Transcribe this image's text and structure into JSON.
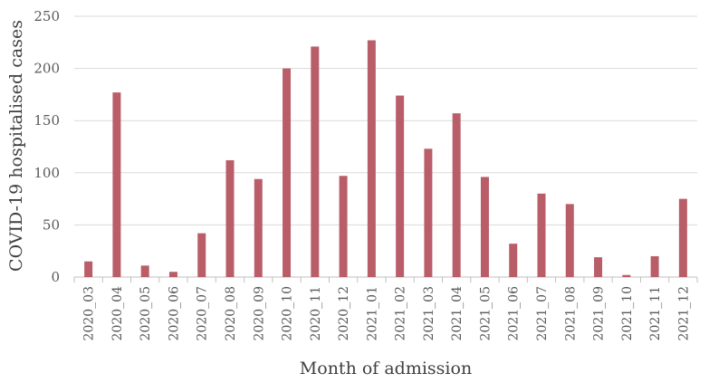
{
  "chart_data": {
    "type": "bar",
    "title": "",
    "xlabel": "Month of admission",
    "ylabel": "COVID-19 hospitalised cases",
    "ylim": [
      0,
      250
    ],
    "yticks": [
      0,
      50,
      100,
      150,
      200,
      250
    ],
    "grid": true,
    "bar_color": "#b95e69",
    "categories": [
      "2020_03",
      "2020_04",
      "2020_05",
      "2020_06",
      "2020_07",
      "2020_08",
      "2020_09",
      "2020_10",
      "2020_11",
      "2020_12",
      "2021_01",
      "2021_02",
      "2021_03",
      "2021_04",
      "2021_05",
      "2021_06",
      "2021_07",
      "2021_08",
      "2021_09",
      "2021_10",
      "2021_11",
      "2021_12"
    ],
    "values": [
      15,
      177,
      11,
      5,
      42,
      112,
      94,
      200,
      221,
      97,
      227,
      174,
      123,
      157,
      96,
      32,
      80,
      70,
      19,
      2,
      20,
      75
    ]
  }
}
